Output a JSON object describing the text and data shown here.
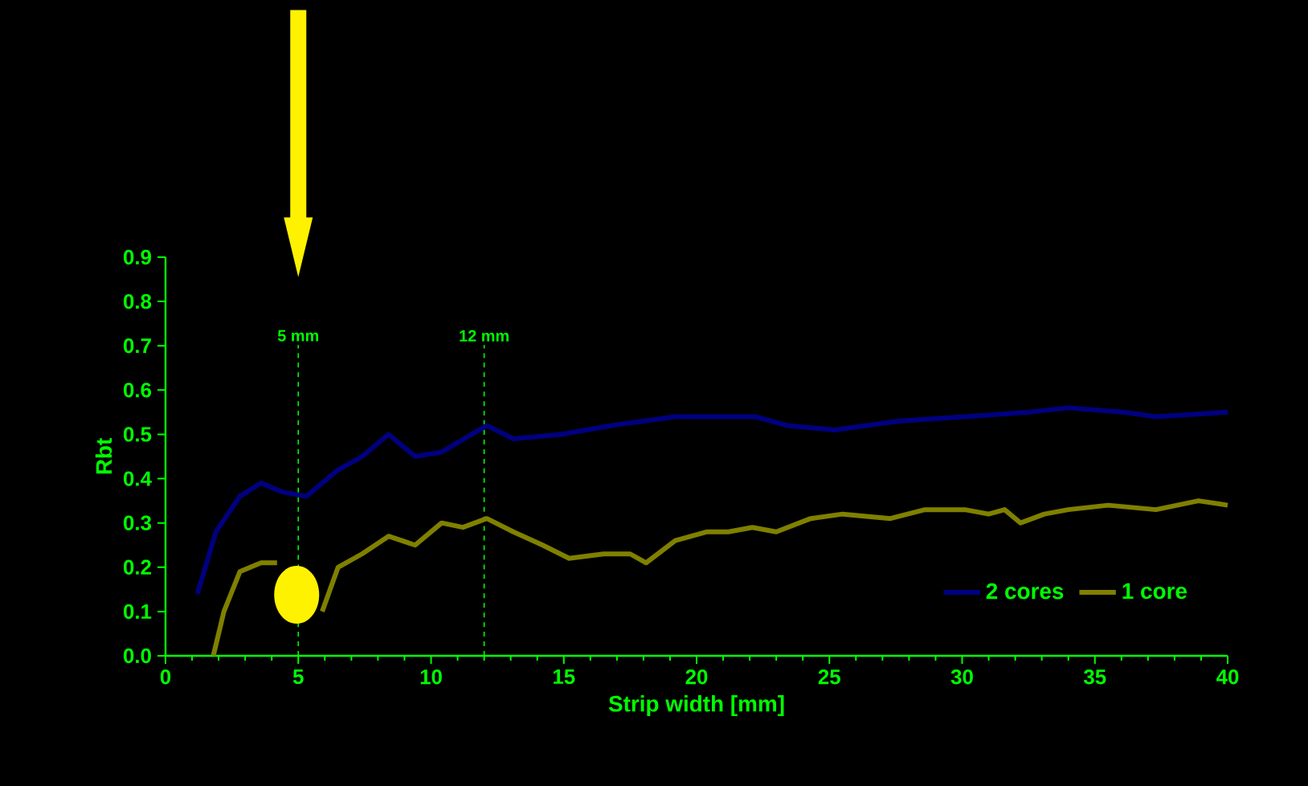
{
  "chart_data": {
    "type": "line",
    "xlabel": "Strip width [mm]",
    "ylabel": "Rbt",
    "xlim": [
      0,
      40
    ],
    "xticks": [
      0,
      5,
      10,
      15,
      20,
      25,
      30,
      35,
      40
    ],
    "ylim": [
      0,
      0.9
    ],
    "yticks": [
      {
        "value": 0,
        "label": "0.0"
      },
      0.1,
      0.2,
      0.3,
      0.4,
      0.5,
      0.6,
      0.7,
      0.8,
      0.9
    ],
    "legend": "bottom right",
    "grid": false,
    "marker": "none",
    "line_style": "solid",
    "ref_lines": [
      {
        "axis": "x",
        "value": 5,
        "label": "5 mm",
        "color": "#00ff00",
        "line_style": "dashed"
      },
      {
        "axis": "x",
        "value": 12,
        "label": "12 mm",
        "color": "#00ff00",
        "line_style": "dashed"
      }
    ],
    "series": [
      {
        "name": "2 cores",
        "color": "#000080",
        "x": [
          1.2,
          1.9,
          2.8,
          3.6,
          4.4,
          5.3,
          6.5,
          7.4,
          8.4,
          9.4,
          10.4,
          12.1,
          13.1,
          14.9,
          16.8,
          19.2,
          21,
          22.2,
          23.4,
          25.2,
          27.6,
          30.1,
          32.5,
          34,
          36.1,
          37.3,
          40
        ],
        "values": [
          0.14,
          0.28,
          0.36,
          0.39,
          0.37,
          0.36,
          0.42,
          0.45,
          0.5,
          0.45,
          0.46,
          0.52,
          0.49,
          0.5,
          0.52,
          0.54,
          0.54,
          0.54,
          0.52,
          0.51,
          0.53,
          0.54,
          0.55,
          0.56,
          0.55,
          0.54,
          0.55
        ]
      },
      {
        "name": "1 core",
        "color": "#808000",
        "x": [
          1.8,
          2.2,
          2.8,
          3.6,
          4.2,
          4.7,
          5.2,
          5.9,
          6.5,
          7.4,
          8.4,
          9.4,
          10.4,
          11.2,
          12.1,
          13.1,
          14.2,
          15.2,
          16.5,
          17.5,
          18.1,
          19.2,
          20.4,
          21.2,
          22.1,
          23,
          24.3,
          25.5,
          27.3,
          28.6,
          30.1,
          31,
          31.6,
          32.2,
          33.1,
          34,
          35.5,
          37.3,
          38.9,
          40
        ],
        "values": [
          0,
          0.1,
          0.19,
          0.21,
          0.21,
          null,
          null,
          0.1,
          0.2,
          0.23,
          0.27,
          0.25,
          0.3,
          0.29,
          0.31,
          0.28,
          0.25,
          0.22,
          0.23,
          0.23,
          0.21,
          0.26,
          0.28,
          0.28,
          0.29,
          0.28,
          0.31,
          0.32,
          0.31,
          0.33,
          0.33,
          0.32,
          0.33,
          0.3,
          0.32,
          0.33,
          0.34,
          0.33,
          0.35,
          0.34
        ]
      }
    ]
  }
}
